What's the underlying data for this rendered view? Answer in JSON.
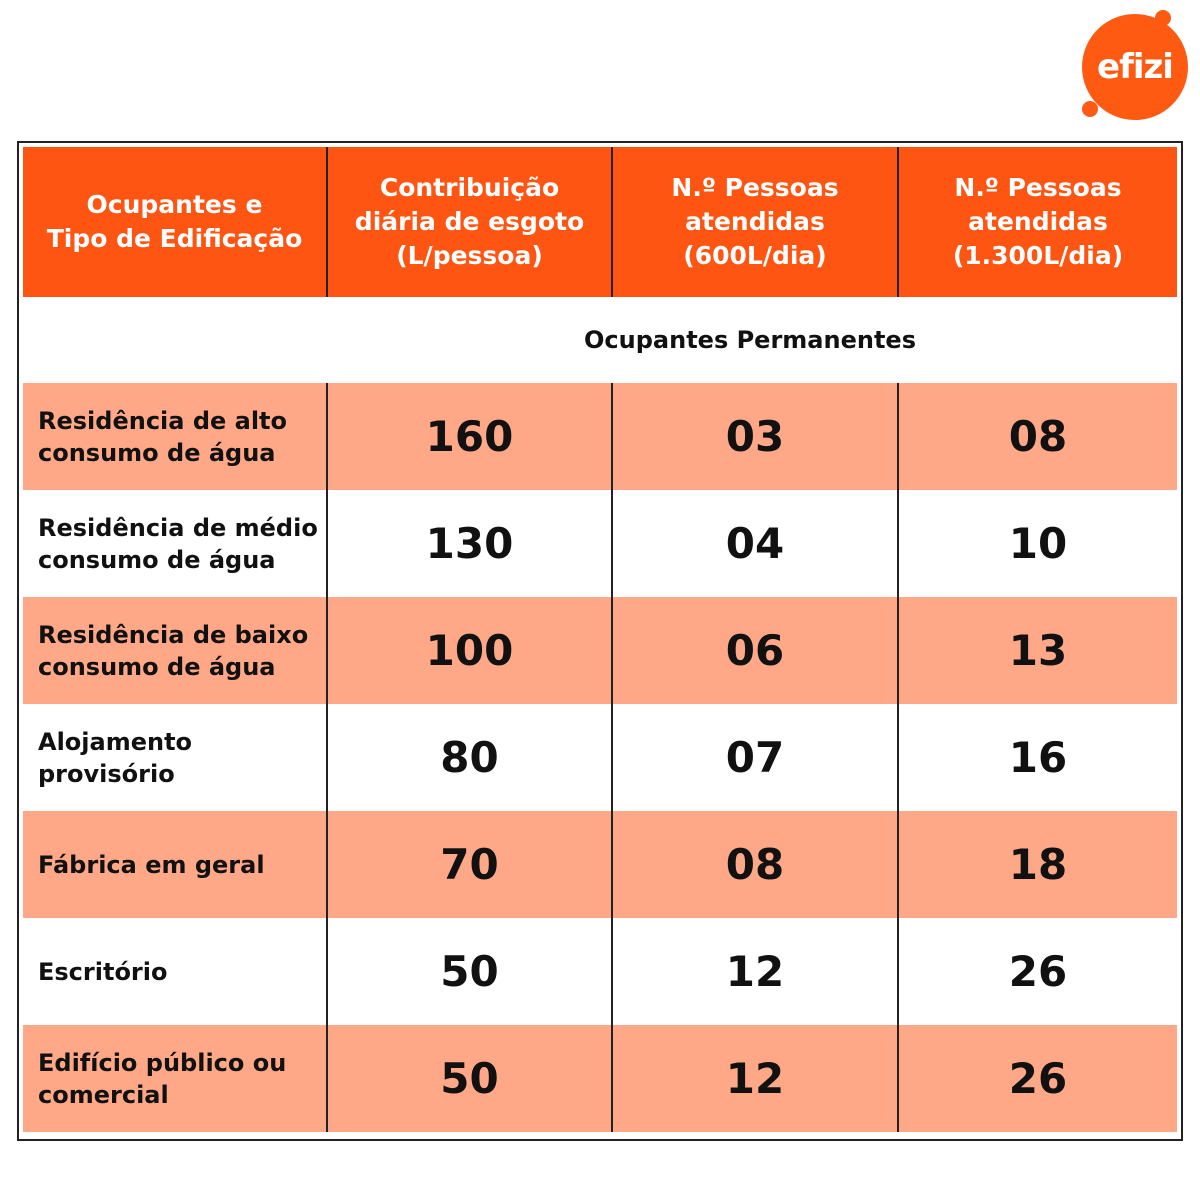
{
  "logo": {
    "text": "efizi",
    "color": "#FF5A12"
  },
  "colors": {
    "header": "#FF5513",
    "row_alt": "#FFA888",
    "row_plain": "#FFFFFF"
  },
  "table": {
    "headers": [
      "Ocupantes e\nTipo de Edificação",
      "Contribuição\ndiária de esgoto\n(L/pessoa)",
      "N.º Pessoas\natendidas\n(600L/dia)",
      "N.º Pessoas\natendidas\n(1.300L/dia)"
    ],
    "section": "Ocupantes Permanentes",
    "rows": [
      [
        "Residência de alto consumo de água",
        "160",
        "03",
        "08"
      ],
      [
        "Residência de médio consumo de água",
        "130",
        "04",
        "10"
      ],
      [
        "Residência de baixo consumo de água",
        "100",
        "06",
        "13"
      ],
      [
        "Alojamento provisório",
        "80",
        "07",
        "16"
      ],
      [
        "Fábrica em geral",
        "70",
        "08",
        "18"
      ],
      [
        "Escritório",
        "50",
        "12",
        "26"
      ],
      [
        "Edifício público ou comercial",
        "50",
        "12",
        "26"
      ]
    ]
  }
}
